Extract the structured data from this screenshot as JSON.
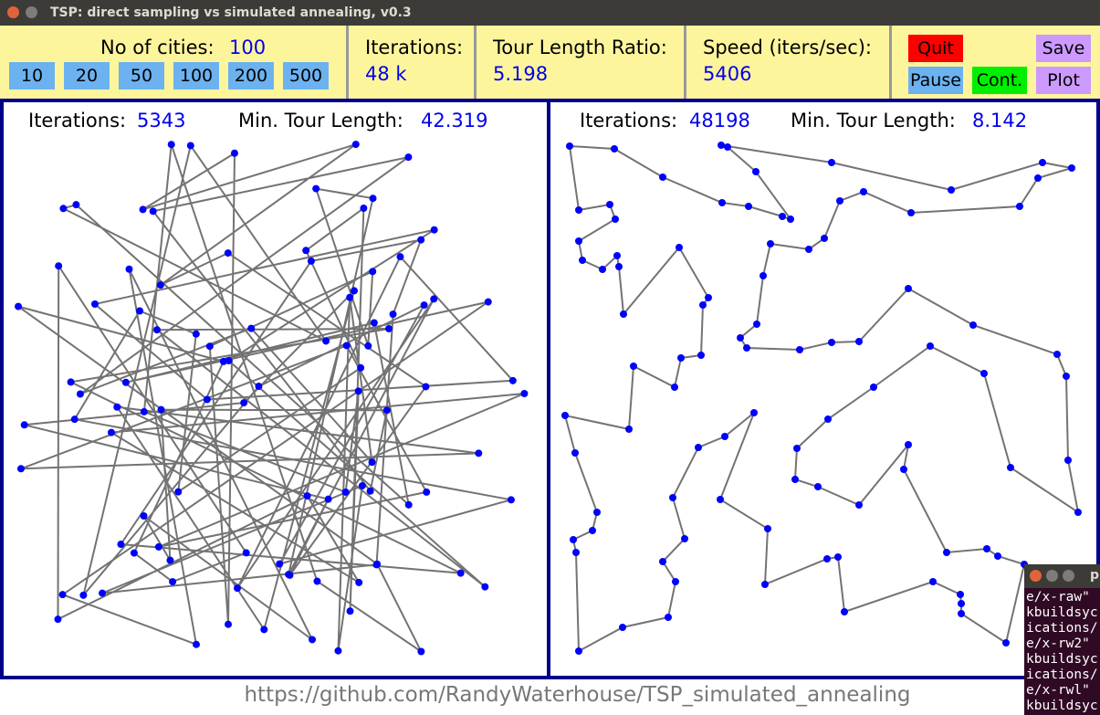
{
  "window": {
    "title": "TSP: direct sampling vs simulated annealing, v0.3"
  },
  "controls": {
    "cities_label": "No of cities:",
    "cities_value": 100,
    "city_buttons": [
      10,
      20,
      50,
      100,
      200,
      500
    ],
    "iterations_label": "Iterations:",
    "iterations_value": "48 k",
    "ratio_label": "Tour Length Ratio:",
    "ratio_value": 5.198,
    "speed_label": "Speed (iters/sec):",
    "speed_value": 5406,
    "buttons": [
      "Quit",
      "Save",
      "Pause",
      "Cont.",
      "Plot"
    ]
  },
  "panels": [
    {
      "iterations_label": "Iterations:",
      "iterations": 5343,
      "length_label": "Min. Tour Length:",
      "length": 42.319
    },
    {
      "iterations_label": "Iterations:",
      "iterations": 48198,
      "length_label": "Min. Tour Length:",
      "length": 8.142
    }
  ],
  "footer": "https://github.com/RandyWaterhouse/TSP_simulated_annealing",
  "terminal": {
    "title": "p",
    "lines": [
      "e/x-raw\"",
      "kbuildsyc",
      "ications/",
      "e/x-rw2\"",
      "kbuildsyc",
      "ications/",
      "e/x-rwl\"",
      "kbuildsyc"
    ]
  }
}
